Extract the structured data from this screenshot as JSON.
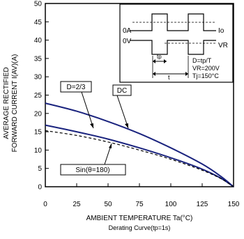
{
  "chart_data": {
    "type": "line",
    "xlabel": "AMBIENT TEMPERATURE Ta(°C)",
    "xsub": "Derating Curve(tp=1s)",
    "ylabel_line1": "AVERAGE RECTIFIED",
    "ylabel_line2": "FORWARD CURRENT I(AV)(A)",
    "xlim": [
      0,
      150
    ],
    "ylim": [
      0,
      50
    ],
    "x_ticks": [
      0,
      25,
      50,
      75,
      100,
      125,
      150
    ],
    "y_ticks": [
      0,
      5,
      10,
      15,
      20,
      25,
      30,
      35,
      40,
      45,
      50
    ],
    "grid": false,
    "series": [
      {
        "name": "DC",
        "x": [
          0,
          25,
          50,
          75,
          100,
          125,
          140,
          150
        ],
        "y": [
          22.8,
          20.6,
          17.8,
          14.5,
          10.6,
          6.2,
          2.8,
          0
        ]
      },
      {
        "name": "D=2/3",
        "x": [
          0,
          25,
          50,
          75,
          100,
          125,
          140,
          150
        ],
        "y": [
          16.8,
          15.0,
          13.0,
          10.6,
          7.9,
          4.8,
          2.3,
          0
        ]
      },
      {
        "name": "Sin(θ=180)",
        "x": [
          0,
          25,
          50,
          75,
          100,
          125,
          140,
          150
        ],
        "y": [
          15.3,
          14.0,
          12.2,
          10.0,
          7.5,
          4.5,
          2.2,
          0
        ],
        "style": "dashed"
      }
    ],
    "labels": {
      "dc": "DC",
      "d23": "D=2/3",
      "sin": "Sin(θ=180)"
    },
    "inset": {
      "label_0a": "0A",
      "label_0v": "0V",
      "label_io": "Io",
      "label_vr": "VR",
      "label_t": "t",
      "label_tp": "tp",
      "label_d": "D=tp/T",
      "label_vr_val": "VR=200V",
      "label_tj": "Tj=150°C"
    }
  }
}
